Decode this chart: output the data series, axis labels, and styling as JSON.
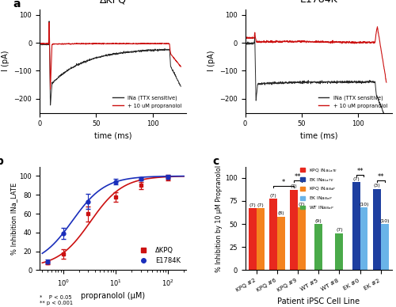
{
  "panel_a_left_title": "ΔKPQ",
  "panel_a_right_title": "E1784K",
  "panel_a_ylabel": "I (pA)",
  "panel_a_xlabel": "time (ms)",
  "panel_a_ylim": [
    -250,
    120
  ],
  "panel_a_xlim": [
    0,
    130
  ],
  "panel_a_yticks": [
    -200,
    -100,
    0,
    100
  ],
  "panel_a_xticks": [
    0,
    50,
    100
  ],
  "panel_b_ylabel": "% Inhibition INa_LATE",
  "panel_b_xlabel": "propranolol (μM)",
  "panel_b_ylim": [
    0,
    110
  ],
  "panel_b_yticks": [
    0,
    20,
    40,
    60,
    80,
    100
  ],
  "panel_b_ic50_dkpq": 3.3,
  "panel_b_ic50_ek": 1.5,
  "panel_b_hill": 1.4,
  "panel_c_ylabel": "% Inhibition by 10 μM Propranolol",
  "panel_c_xlabel": "Patient iPSC Cell Line",
  "panel_c_ylim": [
    0,
    112
  ],
  "panel_c_yticks": [
    0,
    25,
    50,
    75,
    100
  ],
  "panel_c_groups": [
    "KPQ #2",
    "KPQ #6",
    "KPQ #9",
    "WT #5",
    "WT #8",
    "EK #0",
    "EK #2"
  ],
  "panel_c_colors": {
    "kpq_inal": "#e8281e",
    "ek_inal": "#1e3fa0",
    "kpq_inap": "#f4831f",
    "ek_inap": "#6ab4e8",
    "wt_inap": "#4aaa4a"
  },
  "color_black": "#2b2b2b",
  "color_red": "#cc1111",
  "color_dkpq": "#cc1111",
  "color_ek": "#1a2ebb"
}
